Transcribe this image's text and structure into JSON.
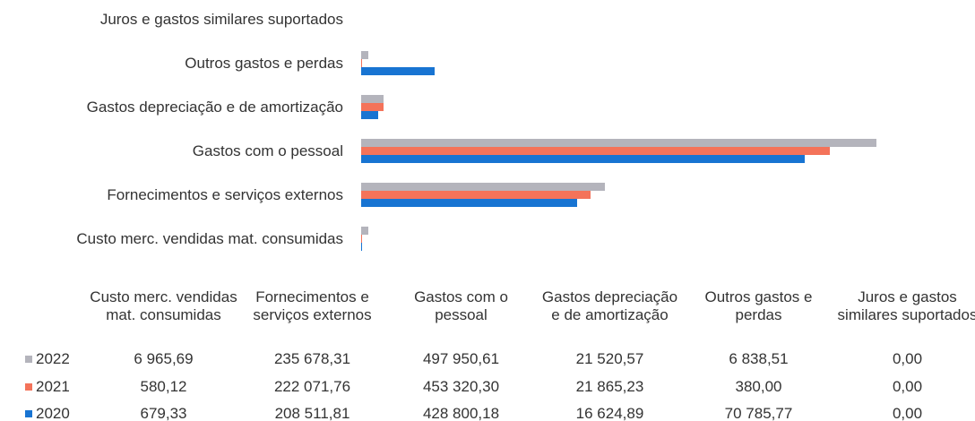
{
  "chart_data": {
    "type": "bar",
    "categories": [
      "Custo merc. vendidas mat. consumidas",
      "Fornecimentos e serviços externos",
      "Gastos com o pessoal",
      "Gastos depreciação e de amortização",
      "Outros gastos e perdas",
      "Juros e gastos similares suportados"
    ],
    "series": [
      {
        "name": "2022",
        "color": "#b4b4bc",
        "values": [
          6965.69,
          235678.31,
          497950.61,
          21520.57,
          6838.51,
          0
        ],
        "value_labels": [
          "6 965,69",
          "235 678,31",
          "497 950,61",
          "21 520,57",
          "6 838,51",
          "0,00"
        ]
      },
      {
        "name": "2021",
        "color": "#f4735a",
        "values": [
          580.12,
          222071.76,
          453320.3,
          21865.23,
          380.0,
          0
        ],
        "value_labels": [
          "580,12",
          "222 071,76",
          "453 320,30",
          "21 865,23",
          "380,00",
          "0,00"
        ]
      },
      {
        "name": "2020",
        "color": "#1874d2",
        "values": [
          679.33,
          208511.81,
          428800.18,
          16624.89,
          70785.77,
          0
        ],
        "value_labels": [
          "679,33",
          "208 511,81",
          "428 800,18",
          "16 624,89",
          "70 785,77",
          "0,00"
        ]
      }
    ]
  }
}
